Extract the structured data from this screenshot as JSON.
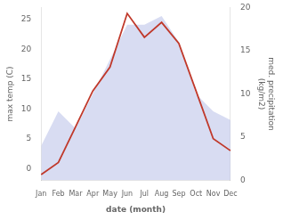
{
  "chart_data": {
    "type": "line",
    "categories": [
      "Jan",
      "Feb",
      "Mar",
      "Apr",
      "May",
      "Jun",
      "Jul",
      "Aug",
      "Sep",
      "Oct",
      "Nov",
      "Dec"
    ],
    "series": [
      {
        "type": "area",
        "color": "#b8c0e8",
        "axis": "y2",
        "values": [
          4,
          8,
          6,
          10,
          14,
          18,
          18,
          19,
          16,
          10,
          8,
          7
        ]
      },
      {
        "type": "line",
        "color": "#c0392b",
        "values": [
          -1,
          1,
          7,
          13,
          17,
          26,
          22,
          24.5,
          21,
          13,
          5,
          3
        ]
      }
    ],
    "xlabel": "date (month)",
    "ylabel": "max temp (C)",
    "y2label": "med. precipitation\n(kg/m2)",
    "ylim": [
      -2,
      27
    ],
    "yticks": [
      0,
      5,
      10,
      15,
      20,
      25
    ],
    "y2lim": [
      0,
      20
    ],
    "y2ticks": [
      0,
      5,
      10,
      15,
      20
    ],
    "grid": false
  }
}
